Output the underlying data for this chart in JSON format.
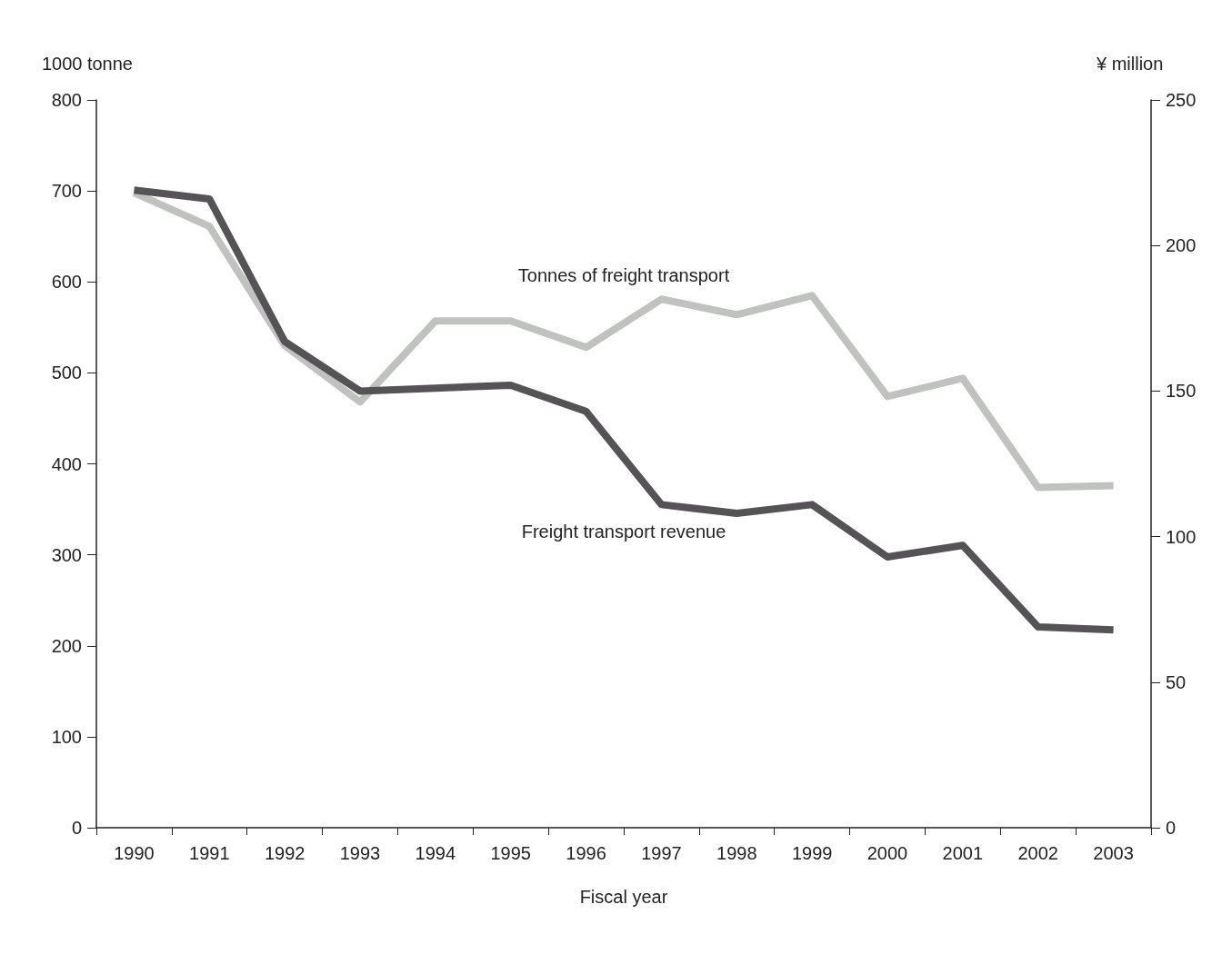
{
  "chart_data": {
    "type": "line",
    "xlabel": "Fiscal year",
    "ylabel": "1000 tonne",
    "y2label": "¥ million",
    "categories": [
      "1990",
      "1991",
      "1992",
      "1993",
      "1994",
      "1995",
      "1996",
      "1997",
      "1998",
      "1999",
      "2000",
      "2001",
      "2002",
      "2003"
    ],
    "series": [
      {
        "name": "Tonnes of freight transport",
        "color": "#c0c2c0",
        "values": [
          698,
          661,
          530,
          468,
          557,
          557,
          528,
          581,
          564,
          585,
          474,
          494,
          374,
          376
        ]
      },
      {
        "name": "Freight transport revenue",
        "color": "#555355",
        "axis": "y2",
        "values": [
          219,
          216,
          167,
          150,
          151,
          152,
          143,
          111,
          108,
          111,
          93,
          97,
          69,
          68
        ]
      }
    ],
    "ylim": [
      0,
      800
    ],
    "yticks": [
      0,
      100,
      200,
      300,
      400,
      500,
      600,
      700,
      800
    ],
    "y2lim": [
      0,
      250
    ],
    "y2ticks": [
      0,
      50,
      100,
      150,
      200,
      250
    ],
    "marker": "none",
    "line_style": "solid"
  }
}
